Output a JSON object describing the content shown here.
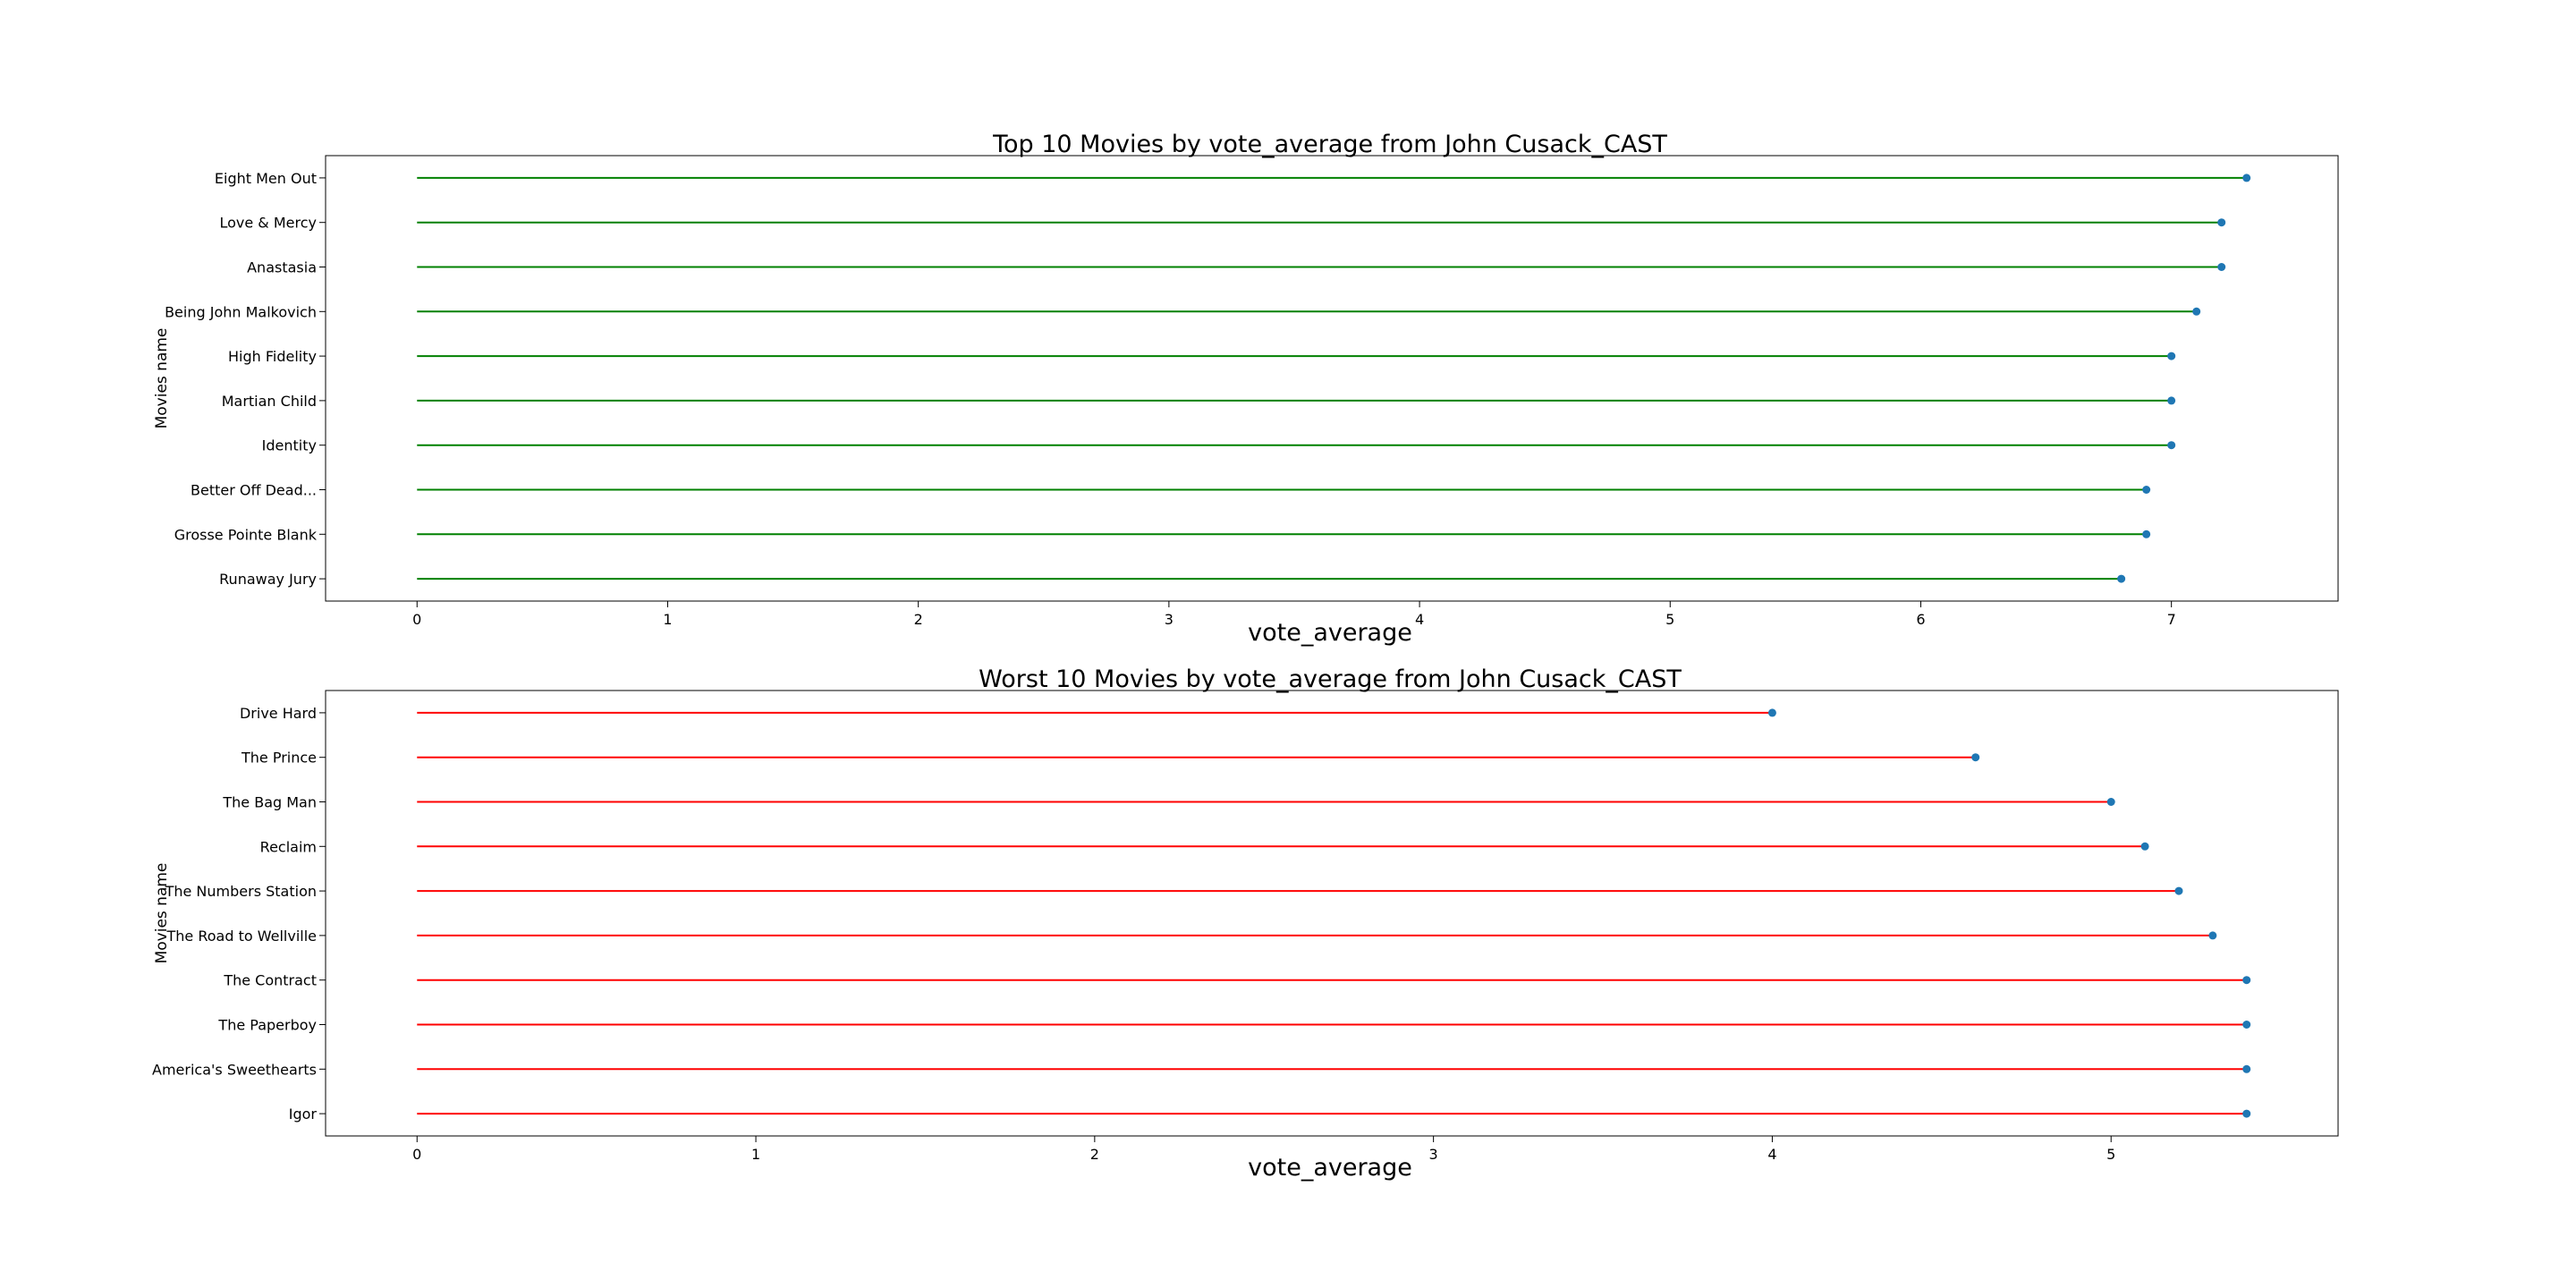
{
  "chart_data": [
    {
      "type": "lollipop",
      "orientation": "horizontal",
      "title": "Top 10 Movies by vote_average from John Cusack_CAST",
      "xlabel": "vote_average",
      "ylabel": "Movies name",
      "categories": [
        "Eight Men Out",
        "Love & Mercy",
        "Anastasia",
        "Being John Malkovich",
        "High Fidelity",
        "Martian Child",
        "Identity",
        "Better Off Dead...",
        "Grosse Pointe Blank",
        "Runaway Jury"
      ],
      "values": [
        7.3,
        7.2,
        7.2,
        7.1,
        7.0,
        7.0,
        7.0,
        6.9,
        6.9,
        6.8
      ],
      "xlim": [
        -0.365,
        7.665
      ],
      "xticks": [
        0,
        1,
        2,
        3,
        4,
        5,
        6,
        7
      ],
      "stem_color": "#008000",
      "marker_color": "#1f77b4",
      "grid": false
    },
    {
      "type": "lollipop",
      "orientation": "horizontal",
      "title": "Worst 10 Movies by vote_average from John Cusack_CAST",
      "xlabel": "vote_average",
      "ylabel": "Movies name",
      "categories": [
        "Drive Hard",
        "The Prince",
        "The Bag Man",
        "Reclaim",
        "The Numbers Station",
        "The Road to Wellville",
        "The Contract",
        "The Paperboy",
        "America's Sweethearts",
        "Igor"
      ],
      "values": [
        4.0,
        4.6,
        5.0,
        5.1,
        5.2,
        5.3,
        5.4,
        5.4,
        5.4,
        5.4
      ],
      "xlim": [
        -0.27,
        5.67
      ],
      "xticks": [
        0,
        1,
        2,
        3,
        4,
        5
      ],
      "stem_color": "#ff0000",
      "marker_color": "#1f77b4",
      "grid": false
    }
  ]
}
